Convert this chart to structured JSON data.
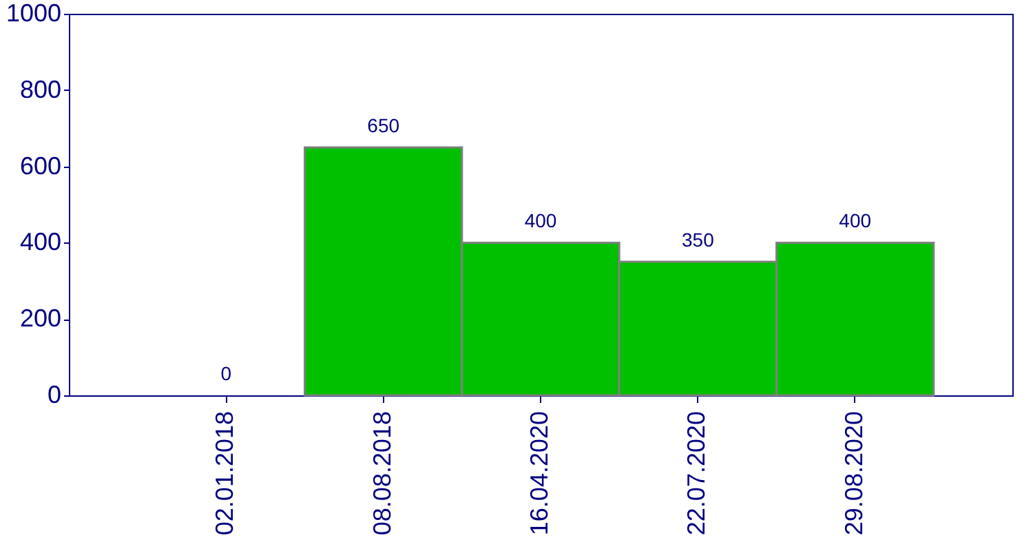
{
  "chart_data": {
    "type": "bar",
    "categories": [
      "02.01.2018",
      "08.08.2018",
      "16.04.2020",
      "22.07.2020",
      "29.08.2020"
    ],
    "values": [
      0,
      650,
      400,
      350,
      400
    ],
    "color": "#00c000",
    "ylim": [
      0,
      1000
    ],
    "yticks": [
      0,
      200,
      400,
      600,
      800,
      1000
    ],
    "grid": false,
    "data_labels": true
  }
}
